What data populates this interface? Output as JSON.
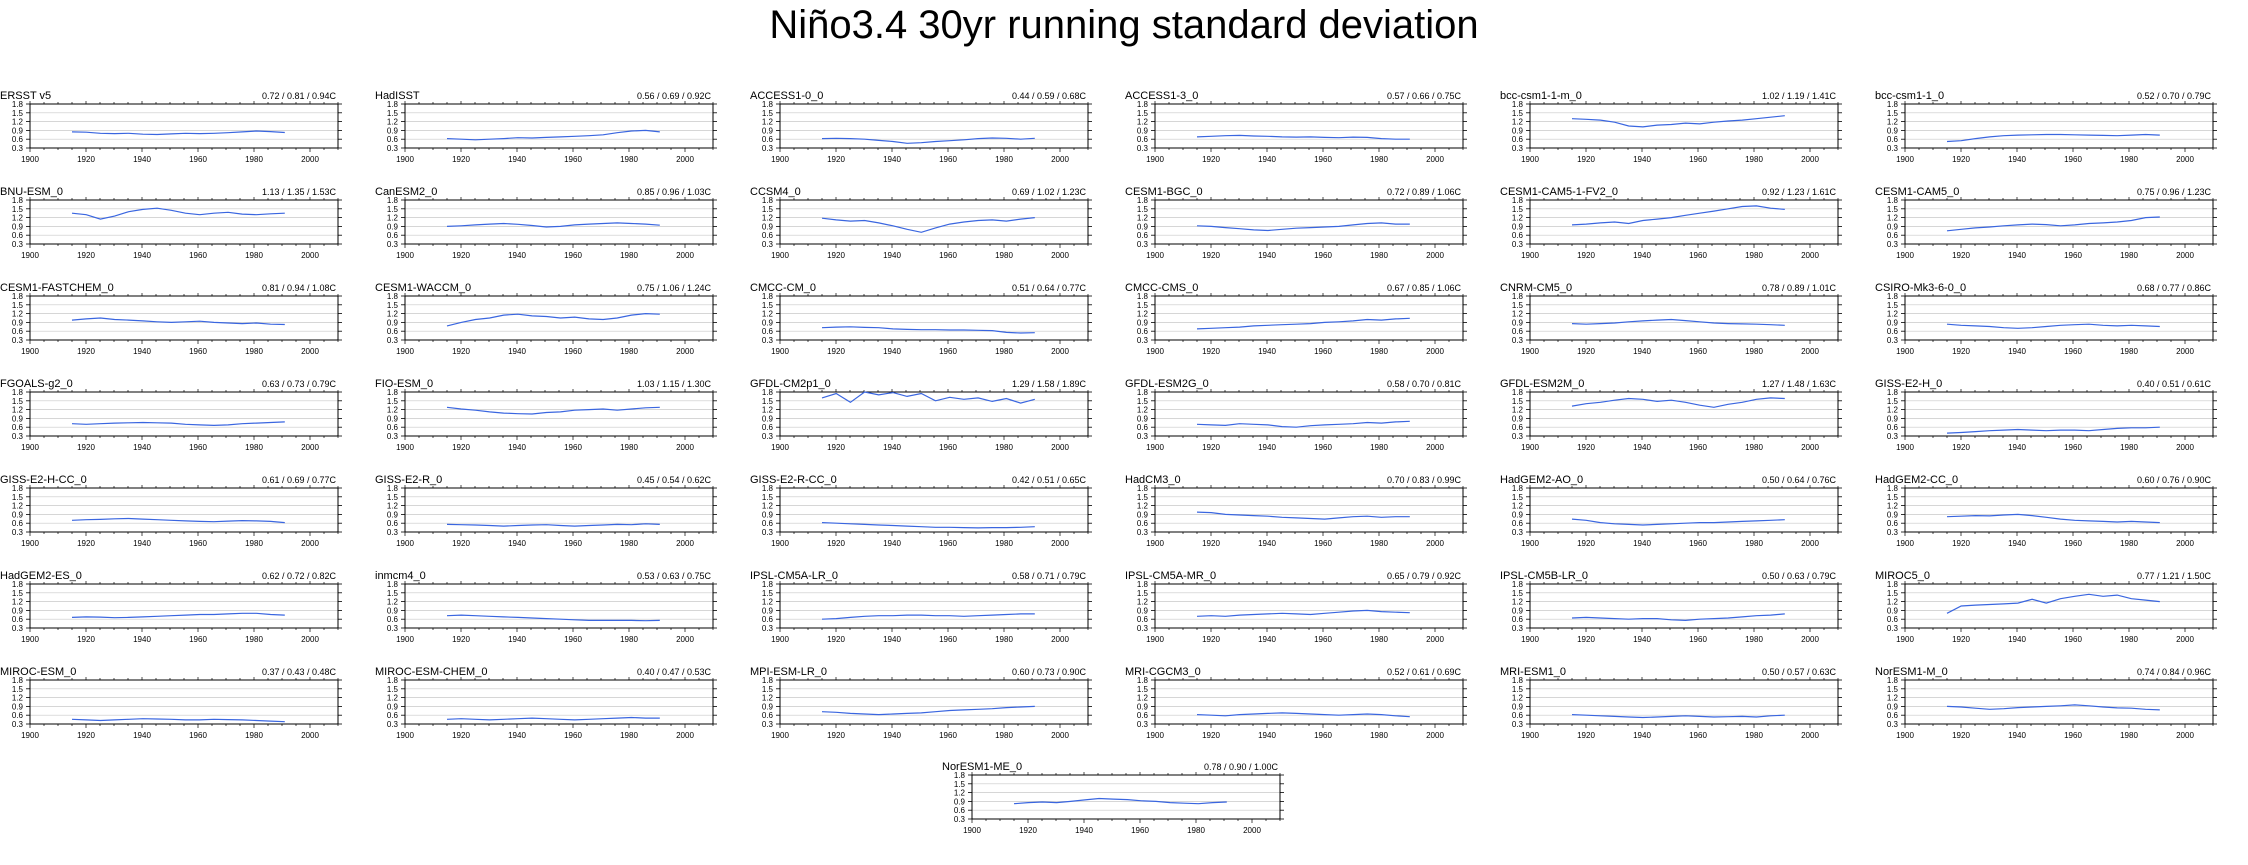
{
  "figure": {
    "title": "Niño3.4 30yr running standard deviation"
  },
  "colors": {
    "line": "#3a66e0",
    "grid": "#c8c8c8",
    "axis": "#000000"
  },
  "chart_data": {
    "type": "line",
    "title": "Niño3.4 30yr running standard deviation",
    "xlim": [
      1900,
      2010
    ],
    "ylim": [
      0.3,
      1.8
    ],
    "xticks": [
      "1900",
      "1920",
      "1940",
      "1960",
      "1980",
      "2000"
    ],
    "yticks": [
      "0.3",
      "0.6",
      "0.9",
      "1.2",
      "1.5",
      "1.8"
    ],
    "x_start": 1915,
    "x_end": 1991,
    "panels": [
      {
        "name": "ERSST v5",
        "stats": "0.72 / 0.81 / 0.94C",
        "values": [
          0.85,
          0.84,
          0.8,
          0.79,
          0.8,
          0.77,
          0.76,
          0.78,
          0.8,
          0.79,
          0.8,
          0.82,
          0.85,
          0.88,
          0.86,
          0.83
        ]
      },
      {
        "name": "HadISST",
        "stats": "0.56 / 0.69 / 0.92C",
        "values": [
          0.62,
          0.6,
          0.58,
          0.6,
          0.62,
          0.65,
          0.64,
          0.66,
          0.68,
          0.7,
          0.72,
          0.75,
          0.82,
          0.88,
          0.9,
          0.85
        ]
      },
      {
        "name": "ACCESS1-0_0",
        "stats": "0.44 / 0.59 / 0.68C",
        "values": [
          0.62,
          0.63,
          0.62,
          0.6,
          0.56,
          0.52,
          0.46,
          0.48,
          0.52,
          0.55,
          0.58,
          0.62,
          0.64,
          0.63,
          0.6,
          0.63
        ]
      },
      {
        "name": "ACCESS1-3_0",
        "stats": "0.57 / 0.66 / 0.75C",
        "values": [
          0.68,
          0.7,
          0.72,
          0.73,
          0.71,
          0.7,
          0.68,
          0.67,
          0.68,
          0.66,
          0.65,
          0.67,
          0.66,
          0.62,
          0.6,
          0.6
        ]
      },
      {
        "name": "bcc-csm1-1-m_0",
        "stats": "1.02 / 1.19 / 1.41C",
        "values": [
          1.3,
          1.28,
          1.25,
          1.18,
          1.05,
          1.02,
          1.08,
          1.1,
          1.15,
          1.12,
          1.18,
          1.22,
          1.25,
          1.3,
          1.35,
          1.4
        ]
      },
      {
        "name": "bcc-csm1-1_0",
        "stats": "0.52 / 0.70 / 0.79C",
        "values": [
          0.52,
          0.55,
          0.62,
          0.68,
          0.72,
          0.74,
          0.75,
          0.76,
          0.76,
          0.75,
          0.74,
          0.73,
          0.72,
          0.74,
          0.76,
          0.74
        ]
      },
      {
        "name": "BNU-ESM_0",
        "stats": "1.13 / 1.35 / 1.53C",
        "values": [
          1.35,
          1.3,
          1.15,
          1.25,
          1.4,
          1.48,
          1.52,
          1.45,
          1.35,
          1.3,
          1.35,
          1.38,
          1.32,
          1.3,
          1.33,
          1.35
        ]
      },
      {
        "name": "CanESM2_0",
        "stats": "0.85 / 0.96 / 1.03C",
        "values": [
          0.9,
          0.92,
          0.95,
          0.98,
          1.0,
          0.97,
          0.93,
          0.88,
          0.9,
          0.95,
          0.98,
          1.0,
          1.02,
          1.0,
          0.98,
          0.94
        ]
      },
      {
        "name": "CCSM4_0",
        "stats": "0.69 / 1.02 / 1.23C",
        "values": [
          1.18,
          1.12,
          1.08,
          1.1,
          1.02,
          0.92,
          0.8,
          0.7,
          0.85,
          0.98,
          1.05,
          1.1,
          1.12,
          1.08,
          1.15,
          1.2
        ]
      },
      {
        "name": "CESM1-BGC_0",
        "stats": "0.72 / 0.89 / 1.06C",
        "values": [
          0.92,
          0.9,
          0.86,
          0.82,
          0.78,
          0.76,
          0.8,
          0.84,
          0.86,
          0.88,
          0.9,
          0.95,
          1.0,
          1.02,
          0.98,
          0.98
        ]
      },
      {
        "name": "CESM1-CAM5-1-FV2_0",
        "stats": "0.92 / 1.23 / 1.61C",
        "values": [
          0.95,
          0.98,
          1.02,
          1.05,
          1.0,
          1.1,
          1.15,
          1.2,
          1.28,
          1.35,
          1.42,
          1.5,
          1.58,
          1.6,
          1.52,
          1.48
        ]
      },
      {
        "name": "CESM1-CAM5_0",
        "stats": "0.75 / 0.96 / 1.23C",
        "values": [
          0.75,
          0.8,
          0.85,
          0.88,
          0.92,
          0.95,
          0.98,
          0.96,
          0.92,
          0.95,
          1.0,
          1.02,
          1.05,
          1.1,
          1.2,
          1.22
        ]
      },
      {
        "name": "CESM1-FASTCHEM_0",
        "stats": "0.81 / 0.94 / 1.08C",
        "values": [
          0.98,
          1.02,
          1.05,
          1.0,
          0.98,
          0.95,
          0.92,
          0.9,
          0.92,
          0.94,
          0.9,
          0.88,
          0.86,
          0.88,
          0.84,
          0.83
        ]
      },
      {
        "name": "CESM1-WACCM_0",
        "stats": "0.75 / 1.06 / 1.24C",
        "values": [
          0.78,
          0.9,
          1.0,
          1.05,
          1.15,
          1.18,
          1.12,
          1.1,
          1.05,
          1.08,
          1.02,
          1.0,
          1.05,
          1.15,
          1.2,
          1.18
        ]
      },
      {
        "name": "CMCC-CM_0",
        "stats": "0.51 / 0.64 / 0.77C",
        "values": [
          0.72,
          0.74,
          0.75,
          0.73,
          0.72,
          0.68,
          0.66,
          0.65,
          0.65,
          0.64,
          0.64,
          0.63,
          0.62,
          0.56,
          0.54,
          0.55
        ]
      },
      {
        "name": "CMCC-CMS_0",
        "stats": "0.67 / 0.85 / 1.06C",
        "values": [
          0.68,
          0.7,
          0.72,
          0.74,
          0.78,
          0.8,
          0.82,
          0.84,
          0.86,
          0.9,
          0.92,
          0.95,
          1.0,
          0.98,
          1.02,
          1.04
        ]
      },
      {
        "name": "CNRM-CM5_0",
        "stats": "0.78 / 0.89 / 1.01C",
        "values": [
          0.86,
          0.84,
          0.86,
          0.88,
          0.92,
          0.95,
          0.98,
          1.0,
          0.96,
          0.92,
          0.88,
          0.86,
          0.85,
          0.84,
          0.82,
          0.8
        ]
      },
      {
        "name": "CSIRO-Mk3-6-0_0",
        "stats": "0.68 / 0.77 / 0.86C",
        "values": [
          0.84,
          0.8,
          0.78,
          0.76,
          0.72,
          0.7,
          0.72,
          0.76,
          0.8,
          0.82,
          0.84,
          0.8,
          0.78,
          0.8,
          0.78,
          0.76
        ]
      },
      {
        "name": "FGOALS-g2_0",
        "stats": "0.63 / 0.73 / 0.79C",
        "values": [
          0.72,
          0.7,
          0.72,
          0.74,
          0.75,
          0.76,
          0.75,
          0.74,
          0.7,
          0.68,
          0.66,
          0.68,
          0.72,
          0.74,
          0.76,
          0.78
        ]
      },
      {
        "name": "FIO-ESM_0",
        "stats": "1.03 / 1.15 / 1.30C",
        "values": [
          1.28,
          1.22,
          1.18,
          1.12,
          1.08,
          1.06,
          1.05,
          1.1,
          1.12,
          1.18,
          1.2,
          1.22,
          1.18,
          1.22,
          1.26,
          1.28
        ]
      },
      {
        "name": "GFDL-CM2p1_0",
        "stats": "1.29 / 1.58 / 1.89C",
        "values": [
          1.6,
          1.75,
          1.45,
          1.8,
          1.7,
          1.78,
          1.65,
          1.75,
          1.5,
          1.62,
          1.55,
          1.6,
          1.48,
          1.58,
          1.42,
          1.55
        ]
      },
      {
        "name": "GFDL-ESM2G_0",
        "stats": "0.58 / 0.70 / 0.81C",
        "values": [
          0.7,
          0.68,
          0.66,
          0.72,
          0.7,
          0.68,
          0.62,
          0.6,
          0.65,
          0.68,
          0.7,
          0.72,
          0.76,
          0.74,
          0.78,
          0.8
        ]
      },
      {
        "name": "GFDL-ESM2M_0",
        "stats": "1.27 / 1.48 / 1.63C",
        "values": [
          1.32,
          1.4,
          1.45,
          1.52,
          1.58,
          1.55,
          1.48,
          1.52,
          1.45,
          1.35,
          1.28,
          1.38,
          1.45,
          1.55,
          1.6,
          1.58
        ]
      },
      {
        "name": "GISS-E2-H_0",
        "stats": "0.40 / 0.51 / 0.61C",
        "values": [
          0.4,
          0.42,
          0.45,
          0.48,
          0.5,
          0.52,
          0.5,
          0.48,
          0.5,
          0.5,
          0.48,
          0.52,
          0.56,
          0.58,
          0.58,
          0.6
        ]
      },
      {
        "name": "GISS-E2-H-CC_0",
        "stats": "0.61 / 0.69 / 0.77C",
        "values": [
          0.7,
          0.72,
          0.73,
          0.75,
          0.76,
          0.74,
          0.72,
          0.7,
          0.68,
          0.66,
          0.65,
          0.67,
          0.69,
          0.68,
          0.66,
          0.62
        ]
      },
      {
        "name": "GISS-E2-R_0",
        "stats": "0.45 / 0.54 / 0.62C",
        "values": [
          0.56,
          0.55,
          0.54,
          0.52,
          0.5,
          0.52,
          0.54,
          0.55,
          0.52,
          0.5,
          0.52,
          0.54,
          0.56,
          0.55,
          0.58,
          0.56
        ]
      },
      {
        "name": "GISS-E2-R-CC_0",
        "stats": "0.42 / 0.51 / 0.65C",
        "values": [
          0.62,
          0.6,
          0.58,
          0.56,
          0.54,
          0.52,
          0.5,
          0.48,
          0.46,
          0.46,
          0.45,
          0.44,
          0.45,
          0.45,
          0.46,
          0.48
        ]
      },
      {
        "name": "HadCM3_0",
        "stats": "0.70 / 0.83 / 0.99C",
        "values": [
          0.98,
          0.96,
          0.9,
          0.88,
          0.86,
          0.84,
          0.8,
          0.78,
          0.76,
          0.74,
          0.78,
          0.82,
          0.84,
          0.8,
          0.82,
          0.82
        ]
      },
      {
        "name": "HadGEM2-AO_0",
        "stats": "0.50 / 0.64 / 0.76C",
        "values": [
          0.74,
          0.7,
          0.62,
          0.58,
          0.56,
          0.54,
          0.56,
          0.58,
          0.6,
          0.62,
          0.62,
          0.64,
          0.66,
          0.68,
          0.7,
          0.72
        ]
      },
      {
        "name": "HadGEM2-CC_0",
        "stats": "0.60 / 0.76 / 0.90C",
        "values": [
          0.82,
          0.84,
          0.86,
          0.85,
          0.88,
          0.9,
          0.86,
          0.8,
          0.74,
          0.7,
          0.68,
          0.66,
          0.64,
          0.66,
          0.64,
          0.62
        ]
      },
      {
        "name": "HadGEM2-ES_0",
        "stats": "0.62 / 0.72 / 0.82C",
        "values": [
          0.66,
          0.68,
          0.67,
          0.65,
          0.66,
          0.68,
          0.7,
          0.72,
          0.74,
          0.76,
          0.76,
          0.78,
          0.8,
          0.8,
          0.76,
          0.74
        ]
      },
      {
        "name": "inmcm4_0",
        "stats": "0.53 / 0.63 / 0.75C",
        "values": [
          0.72,
          0.74,
          0.72,
          0.7,
          0.68,
          0.66,
          0.64,
          0.62,
          0.6,
          0.58,
          0.56,
          0.56,
          0.56,
          0.56,
          0.55,
          0.56
        ]
      },
      {
        "name": "IPSL-CM5A-LR_0",
        "stats": "0.58 / 0.71 / 0.79C",
        "values": [
          0.6,
          0.62,
          0.66,
          0.7,
          0.72,
          0.72,
          0.74,
          0.74,
          0.72,
          0.72,
          0.7,
          0.72,
          0.74,
          0.76,
          0.78,
          0.78
        ]
      },
      {
        "name": "IPSL-CM5A-MR_0",
        "stats": "0.65 / 0.79 / 0.92C",
        "values": [
          0.7,
          0.72,
          0.7,
          0.74,
          0.76,
          0.78,
          0.8,
          0.78,
          0.76,
          0.8,
          0.84,
          0.88,
          0.9,
          0.86,
          0.84,
          0.82
        ]
      },
      {
        "name": "IPSL-CM5B-LR_0",
        "stats": "0.50 / 0.63 / 0.79C",
        "values": [
          0.64,
          0.66,
          0.64,
          0.62,
          0.6,
          0.62,
          0.62,
          0.58,
          0.56,
          0.6,
          0.62,
          0.64,
          0.68,
          0.72,
          0.74,
          0.78
        ]
      },
      {
        "name": "MIROC5_0",
        "stats": "0.77 / 1.21 / 1.50C",
        "values": [
          0.8,
          1.05,
          1.08,
          1.1,
          1.12,
          1.15,
          1.28,
          1.15,
          1.3,
          1.38,
          1.45,
          1.38,
          1.42,
          1.3,
          1.25,
          1.2
        ]
      },
      {
        "name": "MIROC-ESM_0",
        "stats": "0.37 / 0.43 / 0.48C",
        "values": [
          0.46,
          0.44,
          0.42,
          0.44,
          0.46,
          0.48,
          0.47,
          0.46,
          0.44,
          0.44,
          0.46,
          0.45,
          0.44,
          0.42,
          0.4,
          0.38
        ]
      },
      {
        "name": "MIROC-ESM-CHEM_0",
        "stats": "0.40 / 0.47 / 0.53C",
        "values": [
          0.46,
          0.48,
          0.46,
          0.44,
          0.46,
          0.48,
          0.5,
          0.48,
          0.46,
          0.44,
          0.46,
          0.48,
          0.5,
          0.52,
          0.5,
          0.5
        ]
      },
      {
        "name": "MPI-ESM-LR_0",
        "stats": "0.60 / 0.73 / 0.90C",
        "values": [
          0.72,
          0.7,
          0.66,
          0.64,
          0.62,
          0.64,
          0.66,
          0.68,
          0.72,
          0.76,
          0.78,
          0.8,
          0.82,
          0.86,
          0.88,
          0.9
        ]
      },
      {
        "name": "MRI-CGCM3_0",
        "stats": "0.52 / 0.61 / 0.69C",
        "values": [
          0.62,
          0.6,
          0.58,
          0.62,
          0.64,
          0.66,
          0.68,
          0.66,
          0.64,
          0.62,
          0.6,
          0.62,
          0.64,
          0.62,
          0.58,
          0.55
        ]
      },
      {
        "name": "MRI-ESM1_0",
        "stats": "0.50 / 0.57 / 0.63C",
        "values": [
          0.62,
          0.6,
          0.58,
          0.56,
          0.54,
          0.52,
          0.54,
          0.56,
          0.58,
          0.56,
          0.54,
          0.55,
          0.56,
          0.54,
          0.58,
          0.6
        ]
      },
      {
        "name": "NorESM1-M_0",
        "stats": "0.74 / 0.84 / 0.96C",
        "values": [
          0.9,
          0.88,
          0.84,
          0.8,
          0.82,
          0.86,
          0.88,
          0.9,
          0.92,
          0.95,
          0.92,
          0.88,
          0.85,
          0.84,
          0.8,
          0.78
        ]
      },
      {
        "name": "NorESM1-ME_0",
        "stats": "0.78 / 0.90 / 1.00C",
        "values": [
          0.82,
          0.86,
          0.88,
          0.86,
          0.9,
          0.95,
          1.0,
          0.98,
          0.96,
          0.92,
          0.9,
          0.86,
          0.84,
          0.82,
          0.86,
          0.88
        ]
      }
    ]
  }
}
